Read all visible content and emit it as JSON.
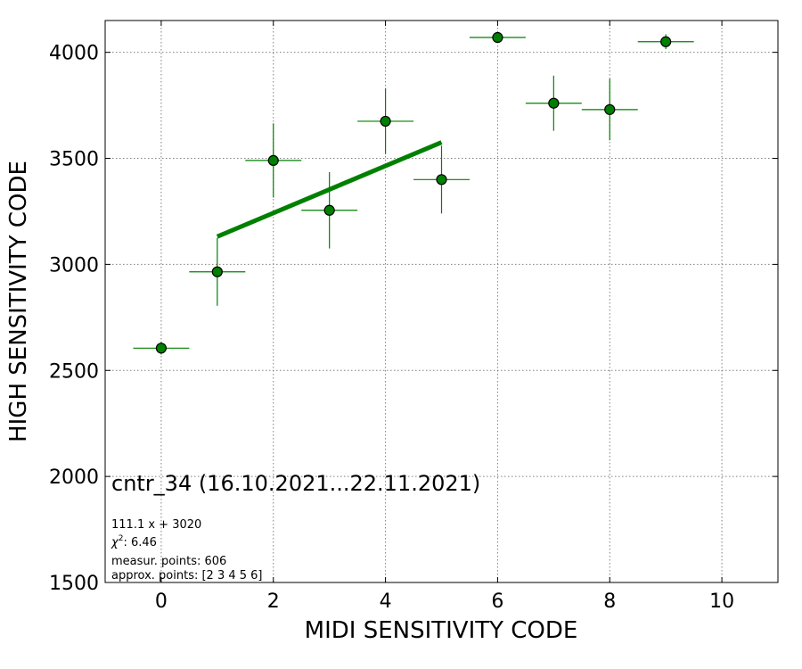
{
  "chart_data": {
    "type": "scatter",
    "xlabel": "MIDI SENSITIVITY CODE",
    "ylabel": "HIGH SENSITIVITY CODE",
    "xlim": [
      -1,
      11
    ],
    "ylim": [
      1500,
      4150
    ],
    "xticks": [
      0,
      2,
      4,
      6,
      8,
      10
    ],
    "yticks": [
      1500,
      2000,
      2500,
      3000,
      3500,
      4000
    ],
    "grid": true,
    "points": [
      {
        "x": 0,
        "y": 2605,
        "xerr": 0.5,
        "yerr": 30
      },
      {
        "x": 1,
        "y": 2965,
        "xerr": 0.5,
        "yerr": 160
      },
      {
        "x": 2,
        "y": 3490,
        "xerr": 0.5,
        "yerr": 175
      },
      {
        "x": 3,
        "y": 3255,
        "xerr": 0.5,
        "yerr": 180
      },
      {
        "x": 4,
        "y": 3675,
        "xerr": 0.5,
        "yerr": 155
      },
      {
        "x": 5,
        "y": 3400,
        "xerr": 0.5,
        "yerr": 160
      },
      {
        "x": 6,
        "y": 4070,
        "xerr": 0.5,
        "yerr": 15
      },
      {
        "x": 7,
        "y": 3760,
        "xerr": 0.5,
        "yerr": 130
      },
      {
        "x": 8,
        "y": 3730,
        "xerr": 0.5,
        "yerr": 145
      },
      {
        "x": 9,
        "y": 4050,
        "xerr": 0.5,
        "yerr": 35
      }
    ],
    "fit": {
      "slope": 111.1,
      "intercept": 3020,
      "x_range": [
        1,
        5
      ]
    },
    "colors": {
      "marker": "#008000",
      "marker_edge": "#000000",
      "error_bar": "#008000",
      "fit_line": "#008000",
      "grid": "#808080"
    },
    "annotations": {
      "title": "cntr_34 (16.10.2021...22.11.2021)",
      "equation": "111.1 x + 3020",
      "chi2_symbol": "χ",
      "chi2_power": "2",
      "chi2_value": ": 6.46",
      "measured": "measur. points: 606",
      "approx": "approx. points: [2 3 4 5 6]"
    }
  }
}
